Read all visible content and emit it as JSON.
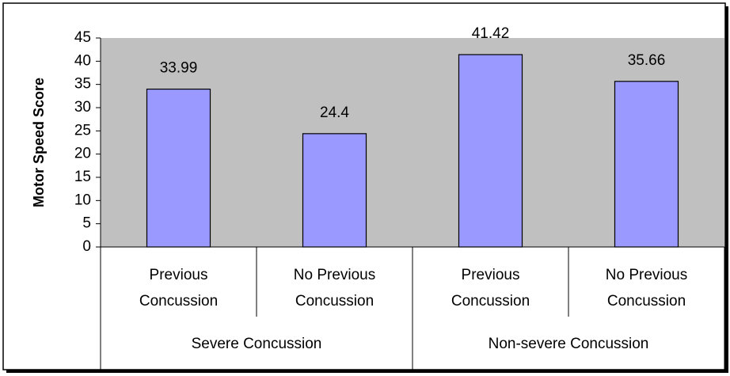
{
  "chart_data": {
    "type": "bar",
    "y_label": "Motor Speed Score",
    "categories": [
      "Previous Concussion",
      "No Previous Concussion",
      "Previous Concussion",
      "No Previous Concussion"
    ],
    "groups": [
      "Severe Concussion",
      "Non-severe Concussion"
    ],
    "values": [
      33.99,
      24.4,
      41.42,
      35.66
    ],
    "color": "#9999ff",
    "plot_background": "#c0c0c0",
    "ylim": [
      0,
      45
    ],
    "yticks": [
      0,
      5,
      10,
      15,
      20,
      25,
      30,
      35,
      40,
      45
    ],
    "grid": false
  }
}
